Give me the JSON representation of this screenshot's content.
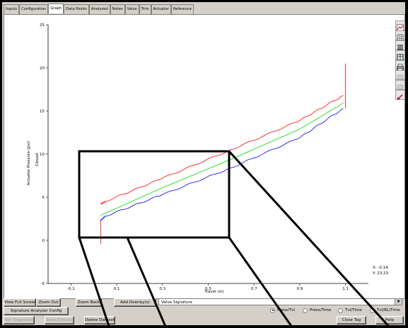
{
  "tabs": [
    "Inputs",
    "Configuration",
    "Graph",
    "Data Points",
    "Analyzed",
    "Notes",
    "Valve",
    "Trim",
    "Actuator",
    "Reference"
  ],
  "active_tab": "Graph",
  "chart_data": {
    "type": "line",
    "xlabel": "Travel (in)",
    "ylabel": "Actuator Pressure (psi)",
    "x_ticks": [
      "-0.1",
      "0.1",
      "0.3",
      "0.5",
      "0.7",
      "0.9",
      "1.1"
    ],
    "y_ticks": [
      "-5",
      "0",
      "5",
      "10",
      "15",
      "20",
      "25"
    ],
    "xlim": [
      -0.2,
      1.2
    ],
    "ylim": [
      -5,
      25
    ],
    "annotation": "Closed",
    "readout_x": "X: -0.14",
    "readout_y": "Y: 23.23",
    "series": [
      {
        "color": "#ff0000",
        "x": [
          0.03,
          0.05,
          0.3,
          0.6,
          0.9,
          1.09
        ],
        "y": [
          4.2,
          4.5,
          7.2,
          10.5,
          13.9,
          16.8
        ]
      },
      {
        "color": "#00dd00",
        "x": [
          0.03,
          0.3,
          0.6,
          0.9,
          1.09
        ],
        "y": [
          2.9,
          6.1,
          9.4,
          12.9,
          15.9
        ]
      },
      {
        "color": "#0000ff",
        "x": [
          0.03,
          0.05,
          0.3,
          0.6,
          0.9,
          1.09
        ],
        "y": [
          2.3,
          2.8,
          5.3,
          8.4,
          11.9,
          15.3
        ]
      }
    ],
    "grid": false
  },
  "toolbar_icons": [
    "graph-icon",
    "grid-icon",
    "list-icon",
    "table-icon",
    "print-icon",
    "disabled-icon",
    "disabled-icon",
    "pencil-icon"
  ],
  "buttons": {
    "view_full_screen": "View Full Screen",
    "zoom_out": "Zoom Out",
    "zoom_back": "Zoom Back",
    "add_overlay": "Add Overlay(s)",
    "signature_config": "Signature Analyzer Config",
    "run_diagnostic": "Run Diagnostic",
    "save_dataset": "Save Dataset",
    "delete_dataset": "Delete Dataset",
    "close_tag": "Close Tag",
    "help": "Help"
  },
  "combo_value": "Valve Signature",
  "radios": [
    "Press/Tvl",
    "Press/Time",
    "Tvl/Time",
    "Tvl/RL/Time"
  ],
  "radio_selected": "Press/Tvl",
  "colors": {
    "annotation": "#000000"
  }
}
